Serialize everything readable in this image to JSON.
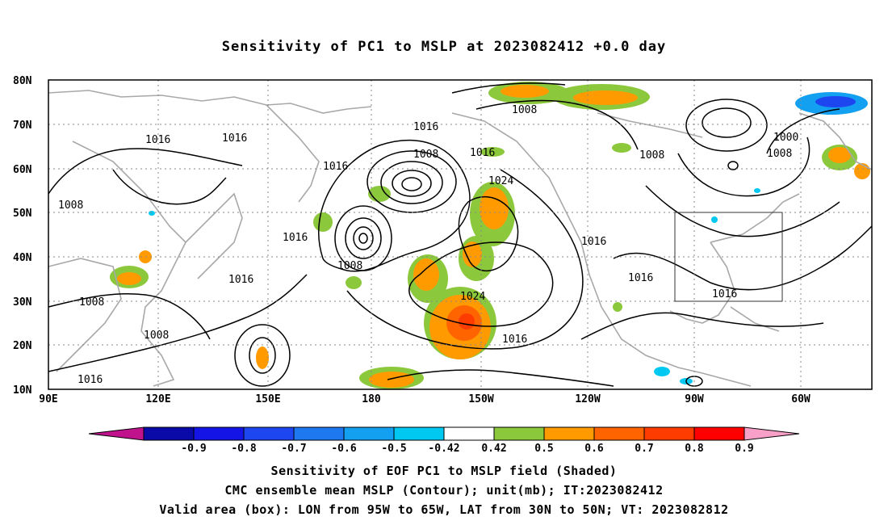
{
  "title": "Sensitivity of PC1 to MSLP at 2023082412 +0.0 day",
  "lat_labels": [
    "80N",
    "70N",
    "60N",
    "50N",
    "40N",
    "30N",
    "20N",
    "10N"
  ],
  "lon_labels": [
    "90E",
    "120E",
    "150E",
    "180",
    "150W",
    "120W",
    "90W",
    "60W"
  ],
  "contour_labels": [
    "1008",
    "1016",
    "1016",
    "1016",
    "1008",
    "1016",
    "1008",
    "1024",
    "1016",
    "1016",
    "1008",
    "1016",
    "1008",
    "1008",
    "1016",
    "1016",
    "1016",
    "1024",
    "1016",
    "1008",
    "1008",
    "1008",
    "1000",
    "1008",
    "1016"
  ],
  "colorbar": {
    "labels": [
      "-0.9",
      "-0.8",
      "-0.7",
      "-0.6",
      "-0.5",
      "-0.42",
      "0.42",
      "0.5",
      "0.6",
      "0.7",
      "0.8",
      "0.9"
    ],
    "colors": [
      "#c0128c",
      "#0a0aa8",
      "#1414e6",
      "#1e46f0",
      "#1e78f0",
      "#14a0f0",
      "#00c8f0",
      "#ffffff",
      "#8cc83c",
      "#ff9b00",
      "#ff6400",
      "#ff3c00",
      "#ff0000",
      "#f8a0c8"
    ]
  },
  "captions": [
    "Sensitivity of EOF PC1 to MSLP field (Shaded)",
    "CMC ensemble mean MSLP (Contour); unit(mb); IT:2023082412",
    "Valid area (box): LON from 95W to 65W, LAT from 30N to 50N; VT: 2023082812"
  ],
  "valid_box": {
    "lon": [
      "95W",
      "65W"
    ],
    "lat": [
      "30N",
      "50N"
    ]
  }
}
